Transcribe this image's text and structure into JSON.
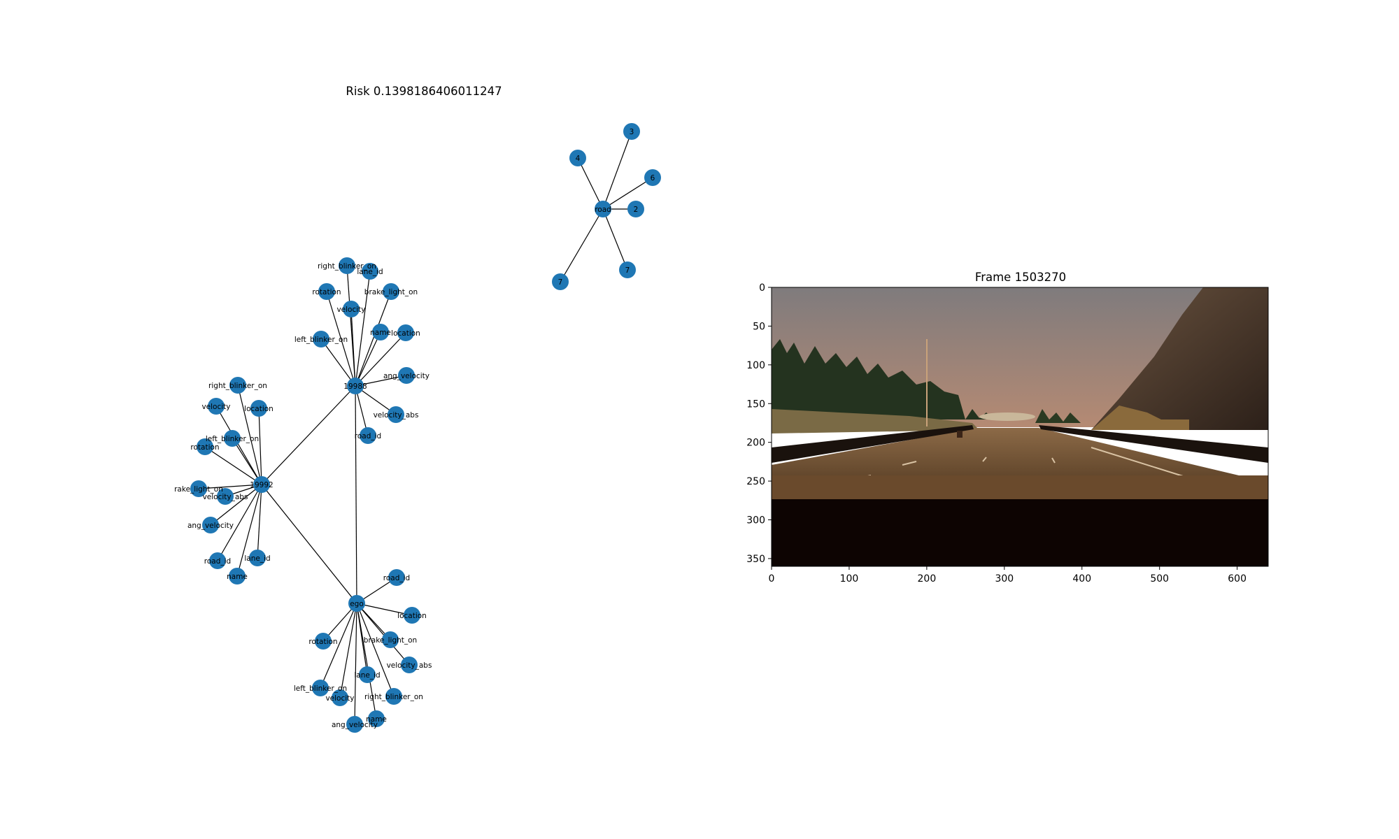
{
  "graph": {
    "title": "Risk 0.1398186406011247",
    "node_color": "#1f77b4",
    "edge_color": "#000000",
    "nodes": [
      {
        "id": "road",
        "label": "road"
      },
      {
        "id": "r3",
        "label": "3"
      },
      {
        "id": "r4",
        "label": "4"
      },
      {
        "id": "r6",
        "label": "6"
      },
      {
        "id": "r2",
        "label": "2"
      },
      {
        "id": "r7a",
        "label": "7"
      },
      {
        "id": "r7b",
        "label": "7"
      },
      {
        "id": "19988",
        "label": "19988"
      },
      {
        "id": "a_rbo",
        "label": "right_blinker_on"
      },
      {
        "id": "a_lane",
        "label": "lane_id"
      },
      {
        "id": "a_rot",
        "label": "rotation"
      },
      {
        "id": "a_brake",
        "label": "brake_light_on"
      },
      {
        "id": "a_vel",
        "label": "velocity"
      },
      {
        "id": "a_name",
        "label": "name"
      },
      {
        "id": "a_loc",
        "label": "location"
      },
      {
        "id": "a_lbo",
        "label": "left_blinker_on"
      },
      {
        "id": "a_ang",
        "label": "ang_velocity"
      },
      {
        "id": "a_vabs",
        "label": "velocity_abs"
      },
      {
        "id": "a_road",
        "label": "road_id"
      },
      {
        "id": "19992",
        "label": "19992"
      },
      {
        "id": "b_rbo",
        "label": "right_blinker_on"
      },
      {
        "id": "b_vel",
        "label": "velocity"
      },
      {
        "id": "b_loc",
        "label": "location"
      },
      {
        "id": "b_lbo",
        "label": "left_blinker_on"
      },
      {
        "id": "b_rot",
        "label": "rotation"
      },
      {
        "id": "b_brake",
        "label": "rake_light_on"
      },
      {
        "id": "b_vabs",
        "label": "velocity_abs"
      },
      {
        "id": "b_ang",
        "label": "ang_velocity"
      },
      {
        "id": "b_road",
        "label": "road_id"
      },
      {
        "id": "b_lane",
        "label": "lane_id"
      },
      {
        "id": "b_name",
        "label": "name"
      },
      {
        "id": "ego",
        "label": "ego"
      },
      {
        "id": "e_road",
        "label": "road_id"
      },
      {
        "id": "e_loc",
        "label": "location"
      },
      {
        "id": "e_rot",
        "label": "rotation"
      },
      {
        "id": "e_brake",
        "label": "brake_light_on"
      },
      {
        "id": "e_vabs",
        "label": "velocity_abs"
      },
      {
        "id": "e_lane",
        "label": "lane_id"
      },
      {
        "id": "e_lbo",
        "label": "left_blinker_on"
      },
      {
        "id": "e_vel",
        "label": "velocity"
      },
      {
        "id": "e_rbo",
        "label": "right_blinker_on"
      },
      {
        "id": "e_name",
        "label": "name"
      },
      {
        "id": "e_ang",
        "label": "ang_velocity"
      }
    ],
    "edges": [
      [
        "road",
        "r3"
      ],
      [
        "road",
        "r4"
      ],
      [
        "road",
        "r6"
      ],
      [
        "road",
        "r2"
      ],
      [
        "road",
        "r7a"
      ],
      [
        "road",
        "r7b"
      ],
      [
        "19988",
        "19992"
      ],
      [
        "19988",
        "ego"
      ],
      [
        "19992",
        "ego"
      ],
      [
        "19988",
        "a_rbo"
      ],
      [
        "19988",
        "a_lane"
      ],
      [
        "19988",
        "a_rot"
      ],
      [
        "19988",
        "a_brake"
      ],
      [
        "19988",
        "a_vel"
      ],
      [
        "19988",
        "a_name"
      ],
      [
        "19988",
        "a_loc"
      ],
      [
        "19988",
        "a_lbo"
      ],
      [
        "19988",
        "a_ang"
      ],
      [
        "19988",
        "a_vabs"
      ],
      [
        "19988",
        "a_road"
      ],
      [
        "19992",
        "b_rbo"
      ],
      [
        "19992",
        "b_vel"
      ],
      [
        "19992",
        "b_loc"
      ],
      [
        "19992",
        "b_lbo"
      ],
      [
        "19992",
        "b_rot"
      ],
      [
        "19992",
        "b_brake"
      ],
      [
        "19992",
        "b_vabs"
      ],
      [
        "19992",
        "b_ang"
      ],
      [
        "19992",
        "b_road"
      ],
      [
        "19992",
        "b_lane"
      ],
      [
        "19992",
        "b_name"
      ],
      [
        "ego",
        "e_road"
      ],
      [
        "ego",
        "e_loc"
      ],
      [
        "ego",
        "e_rot"
      ],
      [
        "ego",
        "e_brake"
      ],
      [
        "ego",
        "e_vabs"
      ],
      [
        "ego",
        "e_lane"
      ],
      [
        "ego",
        "e_lbo"
      ],
      [
        "ego",
        "e_vel"
      ],
      [
        "ego",
        "e_rbo"
      ],
      [
        "ego",
        "e_name"
      ],
      [
        "ego",
        "e_ang"
      ]
    ]
  },
  "frame": {
    "title": "Frame 1503270",
    "xticks": [
      "0",
      "100",
      "200",
      "300",
      "400",
      "500",
      "600"
    ],
    "yticks": [
      "0",
      "50",
      "100",
      "150",
      "200",
      "250",
      "300",
      "350"
    ],
    "x_extent": [
      0,
      640
    ],
    "y_extent": [
      0,
      360
    ],
    "colors": {
      "sky_top": "#7f7b7d",
      "sky_bottom": "#b58a73",
      "road": "#7a5c3c",
      "hood": "#0d0402",
      "trees": "#24331f",
      "hill": "#5a4634"
    }
  }
}
